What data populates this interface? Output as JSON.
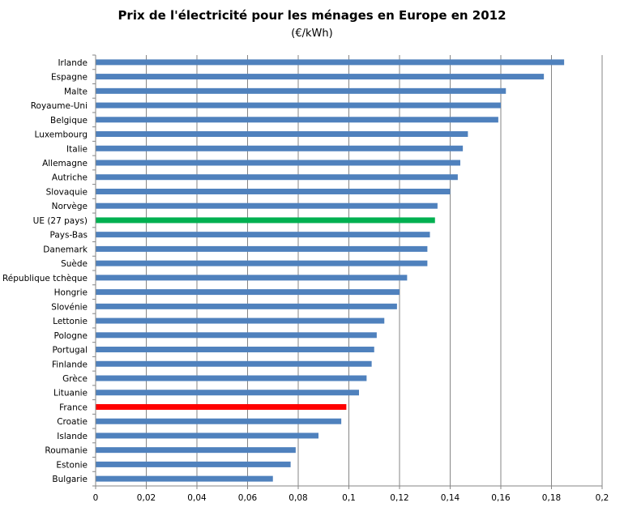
{
  "chart_data": {
    "type": "bar",
    "orientation": "horizontal",
    "title": "Prix de l'électricité  pour les ménages en Europe en 2012",
    "subtitle": "(€/kWh)",
    "xlim": [
      0,
      0.2
    ],
    "xticks": [
      "0",
      "0,02",
      "0,04",
      "0,06",
      "0,08",
      "0,1",
      "0,12",
      "0,14",
      "0,16",
      "0,18",
      "0,2"
    ],
    "grid": true,
    "colors": {
      "default": "#4f81bd",
      "highlight_eu": "#00b050",
      "highlight_fr": "#ff0000"
    },
    "categories": [
      "Irlande",
      "Espagne",
      "Malte",
      "Royaume-Uni",
      "Belgique",
      "Luxembourg",
      "Italie",
      "Allemagne",
      "Autriche",
      "Slovaquie",
      "Norvège",
      "UE (27 pays)",
      "Pays-Bas",
      "Danemark",
      "Suède",
      "République tchèque",
      "Hongrie",
      "Slovénie",
      "Lettonie",
      "Pologne",
      "Portugal",
      "Finlande",
      "Grèce",
      "Lituanie",
      "France",
      "Croatie",
      "Islande",
      "Roumanie",
      "Estonie",
      "Bulgarie"
    ],
    "values": [
      0.185,
      0.177,
      0.162,
      0.16,
      0.159,
      0.147,
      0.145,
      0.144,
      0.143,
      0.14,
      0.135,
      0.134,
      0.132,
      0.131,
      0.131,
      0.123,
      0.12,
      0.119,
      0.114,
      0.111,
      0.11,
      0.109,
      0.107,
      0.104,
      0.099,
      0.097,
      0.088,
      0.079,
      0.077,
      0.07
    ],
    "bar_colors": [
      "#4f81bd",
      "#4f81bd",
      "#4f81bd",
      "#4f81bd",
      "#4f81bd",
      "#4f81bd",
      "#4f81bd",
      "#4f81bd",
      "#4f81bd",
      "#4f81bd",
      "#4f81bd",
      "#00b050",
      "#4f81bd",
      "#4f81bd",
      "#4f81bd",
      "#4f81bd",
      "#4f81bd",
      "#4f81bd",
      "#4f81bd",
      "#4f81bd",
      "#4f81bd",
      "#4f81bd",
      "#4f81bd",
      "#4f81bd",
      "#ff0000",
      "#4f81bd",
      "#4f81bd",
      "#4f81bd",
      "#4f81bd",
      "#4f81bd"
    ]
  }
}
